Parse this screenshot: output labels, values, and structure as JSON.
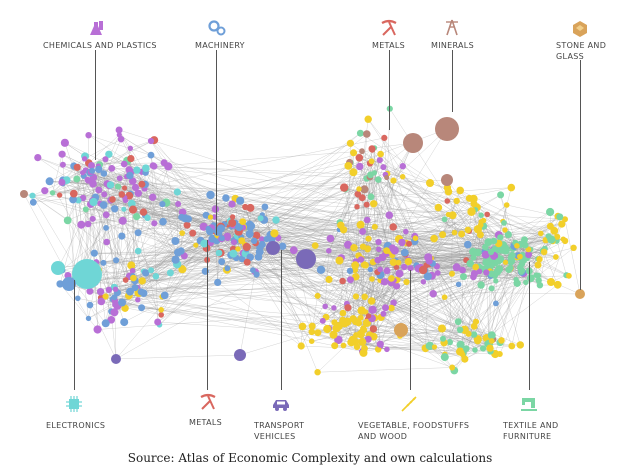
{
  "labels": {
    "chemicals": "CHEMICALS AND PLASTICS",
    "machinery": "MACHINERY",
    "metals_top": "METALS",
    "minerals": "MINERALS",
    "stone": "STONE AND\nGLASS",
    "electronics": "ELECTRONICS",
    "metals_bottom": "METALS",
    "transport": "TRANSPORT\nVEHICLES",
    "vegetable": "VEGETABLE, FOODSTUFFS\nAND WOOD",
    "textile": "TEXTILE AND\nFURNITURE"
  },
  "caption": "Source: Atlas of Economic Complexity and own calculations",
  "colors": {
    "chemicals": "#b86fd6",
    "machinery": "#6f9fd8",
    "metals": "#d9675f",
    "minerals": "#b8877a",
    "stone": "#d9a35a",
    "electronics": "#6fd6d6",
    "transport": "#7a6ab8",
    "vegetable": "#f2cf2a",
    "textile": "#7bd6a4",
    "edge": "#9a9a9a"
  },
  "icons": {
    "chemicals": "flask-icon",
    "machinery": "gears-icon",
    "metals": "pickaxe-icon",
    "minerals": "oil-derrick-icon",
    "stone": "gem-icon",
    "electronics": "chip-icon",
    "transport": "car-icon",
    "vegetable": "wheat-icon",
    "textile": "sewing-machine-icon"
  }
}
